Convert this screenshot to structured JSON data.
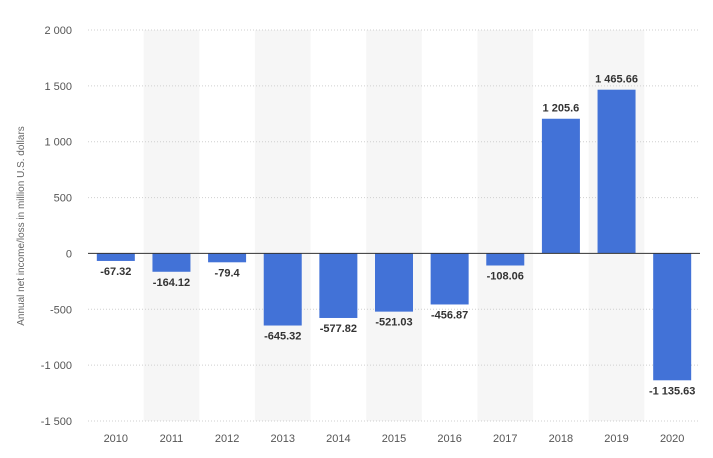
{
  "chart_data": {
    "type": "bar",
    "title": "",
    "xlabel": "",
    "ylabel": "Annual net income/loss in million U.S. dollars",
    "ylim": [
      -1500,
      2000
    ],
    "yticks": [
      2000,
      1500,
      1000,
      500,
      0,
      -500,
      -1000,
      -1500
    ],
    "ytick_labels": [
      "2 000",
      "1 500",
      "1 000",
      "500",
      "0",
      "-500",
      "-1 000",
      "-1 500"
    ],
    "categories": [
      "2010",
      "2011",
      "2012",
      "2013",
      "2014",
      "2015",
      "2016",
      "2017",
      "2018",
      "2019",
      "2020"
    ],
    "values": [
      -67.32,
      -164.12,
      -79.4,
      -645.32,
      -577.82,
      -521.03,
      -456.87,
      -108.06,
      1205.6,
      1465.66,
      -1135.63
    ],
    "value_labels": [
      "-67.32",
      "-164.12",
      "-79.4",
      "-645.32",
      "-577.82",
      "-521.03",
      "-456.87",
      "-108.06",
      "1 205.6",
      "1 465.66",
      "-1 135.63"
    ],
    "bar_color": "#4272d7",
    "grid": true,
    "legend": "none"
  }
}
